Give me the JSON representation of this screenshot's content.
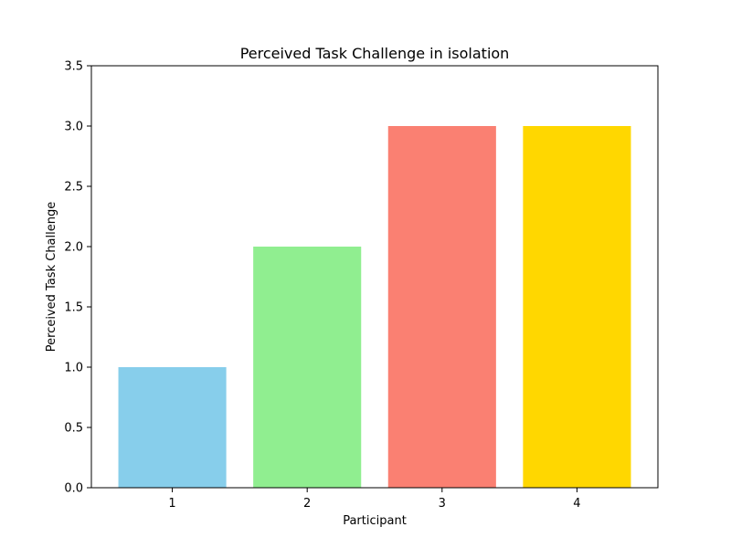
{
  "chart_data": {
    "type": "bar",
    "title": "Perceived Task Challenge in isolation",
    "xlabel": "Participant",
    "ylabel": "Perceived Task Challenge",
    "categories": [
      "1",
      "2",
      "3",
      "4"
    ],
    "values": [
      1,
      2,
      3,
      3
    ],
    "colors": [
      "#87CEEB",
      "#90EE90",
      "#FA8072",
      "#FFD700"
    ],
    "ylim": [
      0,
      3.5
    ],
    "yticks": [
      "0.0",
      "0.5",
      "1.0",
      "1.5",
      "2.0",
      "2.5",
      "3.0",
      "3.5"
    ],
    "grid": false,
    "legend": "none"
  }
}
